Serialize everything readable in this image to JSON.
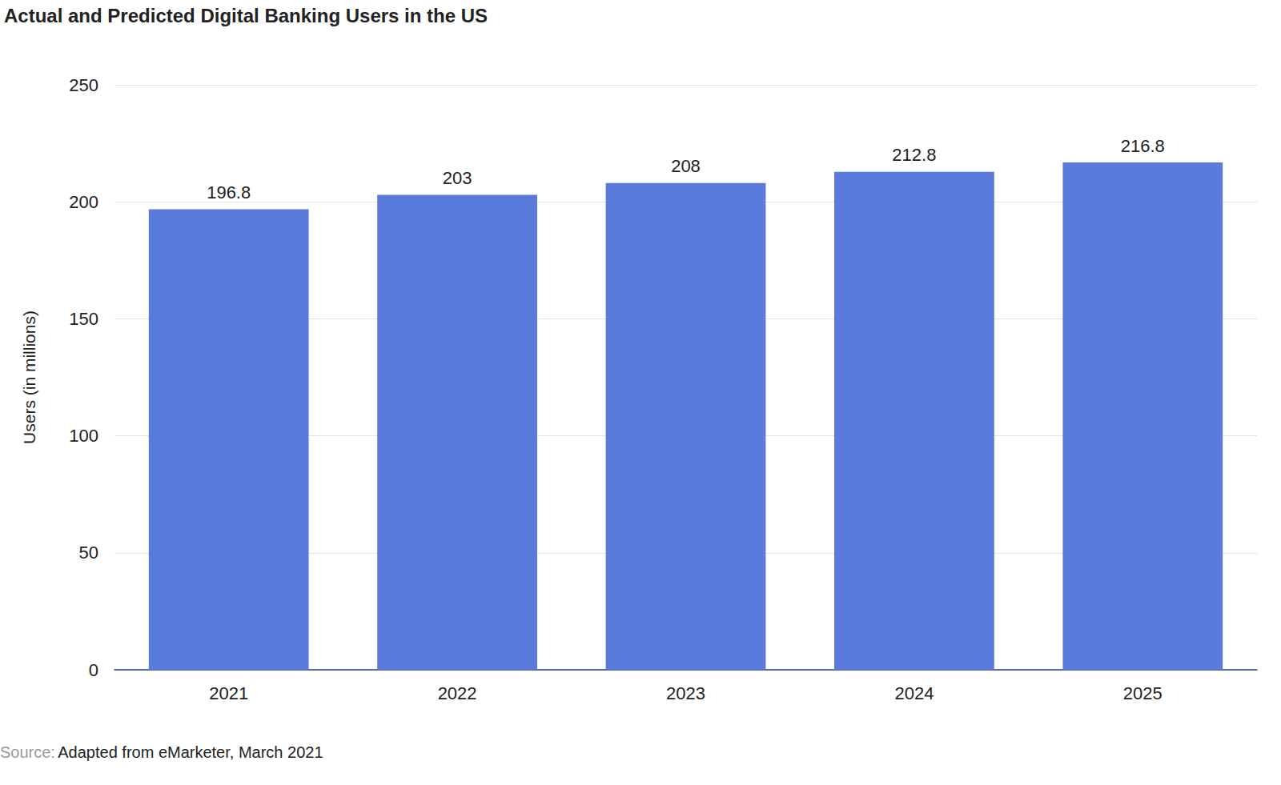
{
  "chart_data": {
    "type": "bar",
    "title": "Actual and Predicted Digital Banking Users in the US",
    "y_label": "Users (in millions)",
    "categories": [
      "2021",
      "2022",
      "2023",
      "2024",
      "2025"
    ],
    "values": [
      196.8,
      203,
      208,
      212.8,
      216.8
    ],
    "color": "#5a7bdb",
    "ylim": [
      0,
      250
    ],
    "yticks": [
      0,
      50,
      100,
      150,
      200,
      250
    ],
    "grid": true,
    "data_labels": true,
    "source": {
      "label": "Source:",
      "text": "Adapted from eMarketer, March 2021"
    }
  }
}
